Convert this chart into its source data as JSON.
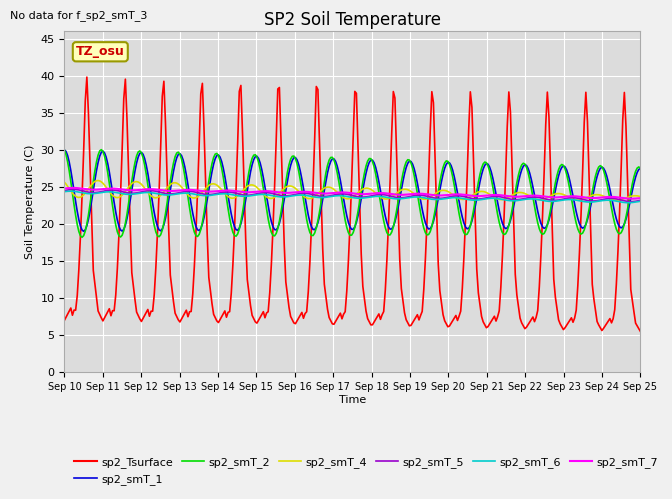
{
  "title": "SP2 Soil Temperature",
  "xlabel": "Time",
  "ylabel": "Soil Temperature (C)",
  "note": "No data for f_sp2_smT_3",
  "tz_label": "TZ_osu",
  "ylim": [
    0,
    46
  ],
  "yticks": [
    0,
    5,
    10,
    15,
    20,
    25,
    30,
    35,
    40,
    45
  ],
  "xtick_labels": [
    "Sep 10",
    "Sep 11",
    "Sep 12",
    "Sep 13",
    "Sep 14",
    "Sep 15",
    "Sep 16",
    "Sep 17",
    "Sep 18",
    "Sep 19",
    "Sep 20",
    "Sep 21",
    "Sep 22",
    "Sep 23",
    "Sep 24",
    "Sep 25"
  ],
  "series": {
    "sp2_Tsurface": {
      "color": "#ff0000",
      "lw": 1.2
    },
    "sp2_smT_1": {
      "color": "#0000dd",
      "lw": 1.2
    },
    "sp2_smT_2": {
      "color": "#00dd00",
      "lw": 1.2
    },
    "sp2_smT_4": {
      "color": "#dddd00",
      "lw": 1.2
    },
    "sp2_smT_5": {
      "color": "#9900cc",
      "lw": 1.2
    },
    "sp2_smT_6": {
      "color": "#00cccc",
      "lw": 1.2
    },
    "sp2_smT_7": {
      "color": "#ff00ff",
      "lw": 1.5
    }
  },
  "fig_bg": "#f0f0f0",
  "plot_bg": "#dcdcdc"
}
